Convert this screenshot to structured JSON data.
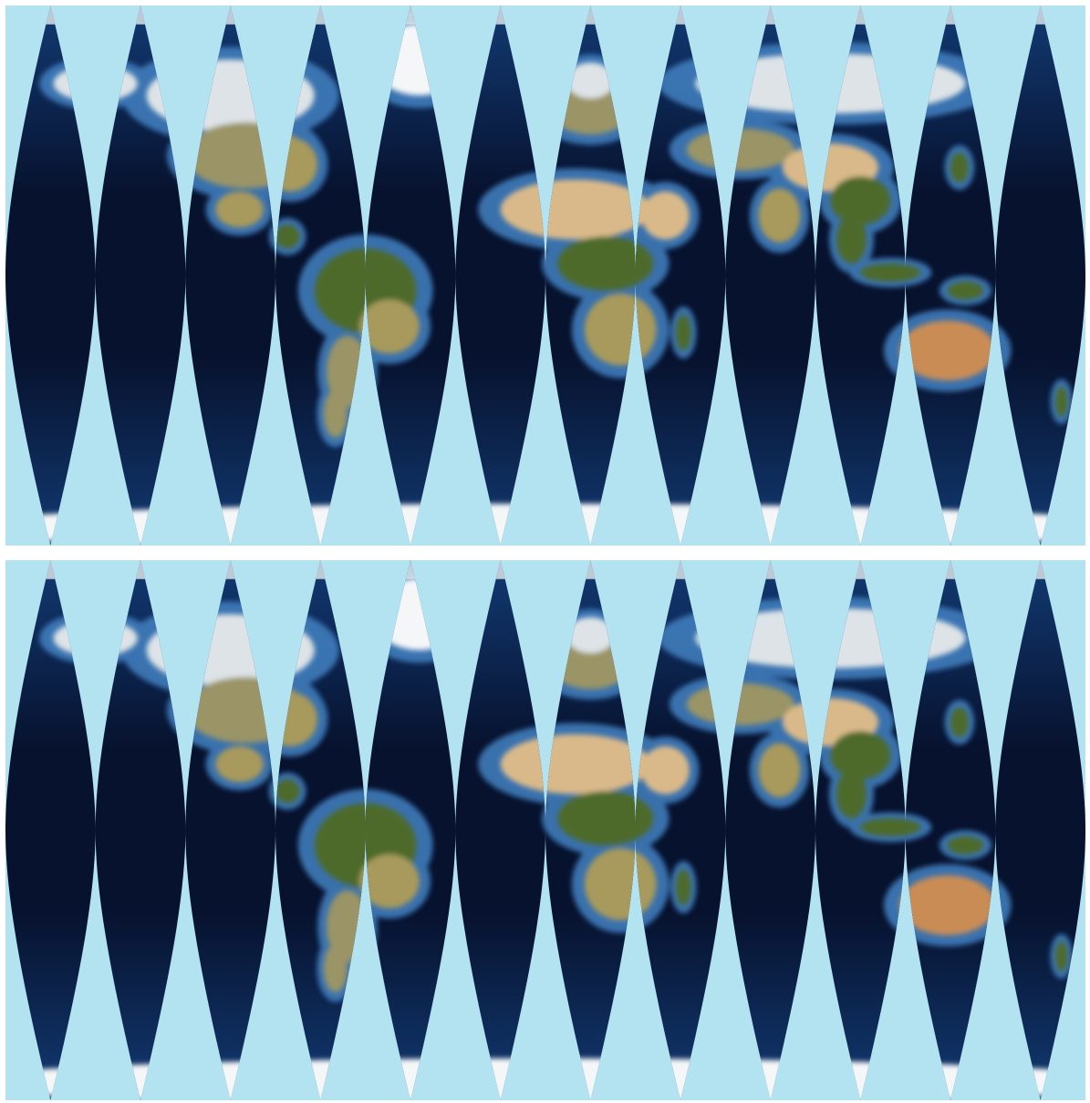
{
  "figure": {
    "colors": {
      "background": "#b3e2f0",
      "ocean_deep": "#07122e",
      "ocean_mid": "#123a73",
      "ocean_shallow": "#3f7dbc",
      "ice": "#f4f6f8",
      "desert": "#d9b98a",
      "savanna": "#a89a5c",
      "forest": "#4d6b2a",
      "outback": "#c98c55",
      "steppe": "#9a9466",
      "tundra": "#dde3e6"
    },
    "gore_count": 12,
    "panels": [
      {
        "id": "top",
        "label": ""
      },
      {
        "id": "bottom",
        "label": ""
      }
    ]
  }
}
